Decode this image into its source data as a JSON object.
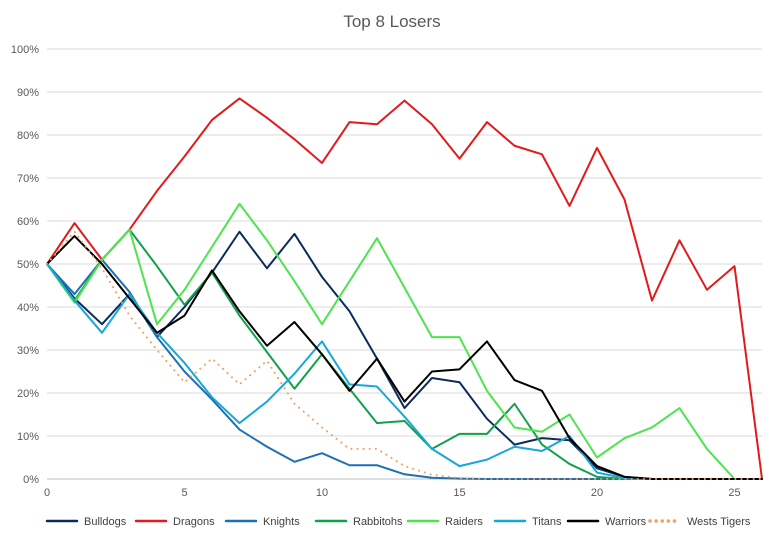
{
  "chart_data": {
    "type": "line",
    "title": "Top 8 Losers",
    "xlabel": "",
    "ylabel": "",
    "xlim": [
      0,
      26
    ],
    "ylim": [
      0,
      100
    ],
    "x_ticks": [
      0,
      5,
      10,
      15,
      20,
      25
    ],
    "x_tick_labels": [
      "0",
      "5",
      "10",
      "15",
      "20",
      "25"
    ],
    "y_ticks": [
      0,
      10,
      20,
      30,
      40,
      50,
      60,
      70,
      80,
      90,
      100
    ],
    "y_tick_labels": [
      "0%",
      "10%",
      "20%",
      "30%",
      "40%",
      "50%",
      "60%",
      "70%",
      "80%",
      "90%",
      "100%"
    ],
    "grid": true,
    "legend_position": "bottom",
    "x": [
      0,
      1,
      2,
      3,
      4,
      5,
      6,
      7,
      8,
      9,
      10,
      11,
      12,
      13,
      14,
      15,
      16,
      17,
      18,
      19,
      20,
      21,
      22,
      23,
      24,
      25,
      26
    ],
    "series": [
      {
        "name": "Bulldogs",
        "color": "#0d2a5c",
        "dash": "solid",
        "values": [
          50,
          42,
          36,
          43,
          33,
          40,
          48,
          57.5,
          49,
          57,
          47,
          39,
          28,
          16.5,
          23.5,
          22.5,
          14,
          8,
          9.5,
          9,
          2.5,
          0.5,
          0,
          0,
          0,
          0,
          0
        ]
      },
      {
        "name": "Dragons",
        "color": "#e31a1c",
        "dash": "solid",
        "values": [
          50,
          59.5,
          51,
          58,
          67,
          75,
          83.5,
          88.5,
          84,
          79,
          73.5,
          83,
          82.5,
          88,
          82.5,
          74.5,
          83,
          77.5,
          75.5,
          63.5,
          77,
          65,
          41.5,
          55.5,
          44,
          49.5,
          0
        ]
      },
      {
        "name": "Knights",
        "color": "#1f6fb4",
        "dash": "solid",
        "values": [
          50,
          43,
          51,
          43.5,
          33,
          25,
          18.5,
          11.5,
          7.5,
          4,
          6,
          3.2,
          3.2,
          1.1,
          0.3,
          0.1,
          0,
          0,
          0,
          0,
          0,
          0,
          0,
          0,
          0,
          0,
          0
        ]
      },
      {
        "name": "Rabbitohs",
        "color": "#12a04a",
        "dash": "solid",
        "values": [
          50,
          41.5,
          51,
          58,
          49.5,
          40.5,
          48,
          38,
          29.5,
          21,
          29,
          21,
          13,
          13.5,
          7,
          10.5,
          10.5,
          17.5,
          8,
          3.5,
          0.5,
          0,
          0,
          0,
          0,
          0,
          0
        ]
      },
      {
        "name": "Raiders",
        "color": "#4ee44e",
        "dash": "solid",
        "values": [
          50,
          41,
          51,
          58,
          36,
          44,
          54,
          64,
          55.5,
          46,
          36,
          46,
          56,
          44.5,
          33,
          33,
          20.5,
          12,
          11,
          15,
          5,
          9.5,
          12,
          16.5,
          7,
          0,
          0
        ]
      },
      {
        "name": "Titans",
        "color": "#17a7d8",
        "dash": "solid",
        "values": [
          50,
          41.5,
          34,
          43,
          34,
          27,
          19,
          13,
          18,
          24.5,
          32,
          22,
          21.5,
          14.5,
          7,
          3,
          4.5,
          7.5,
          6.5,
          10,
          1.5,
          0.2,
          0,
          0,
          0,
          0,
          0
        ]
      },
      {
        "name": "Warriors",
        "color": "#000000",
        "dash": "solid",
        "values": [
          50,
          56.5,
          50,
          42,
          34,
          38,
          48.5,
          39,
          31,
          36.5,
          29,
          20.5,
          28,
          18,
          25,
          25.5,
          32,
          23,
          20.5,
          9.5,
          3,
          0.5,
          0,
          0,
          0,
          0,
          0
        ]
      },
      {
        "name": "Wests Tigers",
        "color": "#f0a060",
        "dash": "dotted",
        "values": [
          50,
          57.5,
          49,
          38,
          30,
          22.5,
          28,
          22,
          27.5,
          17.5,
          12,
          7,
          7,
          3,
          1,
          0.2,
          0,
          0,
          0,
          0,
          0,
          0,
          0,
          0,
          0,
          0,
          0
        ]
      }
    ]
  }
}
